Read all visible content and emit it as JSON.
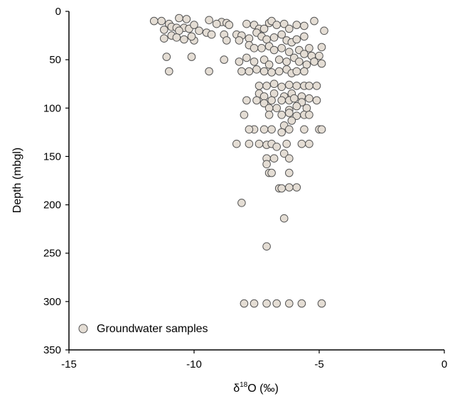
{
  "chart_data": {
    "type": "scatter",
    "title": "",
    "xlabel": "δ¹⁸O (‰)",
    "xlabel_parts": {
      "prefix": "δ",
      "sup": "18",
      "suffix": "O (‰)"
    },
    "ylabel": "Depth (mbgl)",
    "xlim": [
      -15,
      0
    ],
    "ylim": [
      0,
      350
    ],
    "y_inverted": true,
    "x_axis_position": "top",
    "x_ticks": [
      -15,
      -10,
      -5,
      0
    ],
    "y_ticks": [
      0,
      50,
      100,
      150,
      200,
      250,
      300,
      350
    ],
    "x_tick_labels": [
      "-15",
      "-10",
      "-5",
      "0"
    ],
    "y_tick_labels": [
      "0",
      "50",
      "100",
      "150",
      "200",
      "250",
      "300",
      "350"
    ],
    "grid": false,
    "legend_position": "bottom-left",
    "series": [
      {
        "name": "Groundwater samples",
        "marker": "circle",
        "fill": "#e4ddd4",
        "stroke": "#555555",
        "points": [
          [
            -11.6,
            10
          ],
          [
            -11.3,
            10
          ],
          [
            -10.6,
            7
          ],
          [
            -10.3,
            8
          ],
          [
            -9.4,
            9
          ],
          [
            -8.9,
            11
          ],
          [
            -8.7,
            12
          ],
          [
            -8.6,
            14
          ],
          [
            -9.1,
            13
          ],
          [
            -11.0,
            13
          ],
          [
            -10.9,
            16
          ],
          [
            -10.7,
            17
          ],
          [
            -10.4,
            17
          ],
          [
            -10.2,
            18
          ],
          [
            -10.0,
            14
          ],
          [
            -9.8,
            20
          ],
          [
            -10.6,
            20
          ],
          [
            -11.2,
            19
          ],
          [
            -11.2,
            28
          ],
          [
            -10.9,
            25
          ],
          [
            -10.7,
            27
          ],
          [
            -10.4,
            29
          ],
          [
            -10.0,
            30
          ],
          [
            -10.1,
            26
          ],
          [
            -9.5,
            22
          ],
          [
            -9.3,
            24
          ],
          [
            -8.8,
            24
          ],
          [
            -8.7,
            30
          ],
          [
            -11.1,
            47
          ],
          [
            -10.1,
            47
          ],
          [
            -11.0,
            62
          ],
          [
            -9.4,
            62
          ],
          [
            -8.8,
            50
          ],
          [
            -7.9,
            13
          ],
          [
            -7.6,
            14
          ],
          [
            -7.4,
            18
          ],
          [
            -7.2,
            18
          ],
          [
            -7.0,
            12
          ],
          [
            -6.9,
            10
          ],
          [
            -6.7,
            14
          ],
          [
            -6.4,
            13
          ],
          [
            -6.2,
            18
          ],
          [
            -5.9,
            14
          ],
          [
            -5.6,
            15
          ],
          [
            -5.2,
            10
          ],
          [
            -4.8,
            20
          ],
          [
            -8.3,
            24
          ],
          [
            -8.1,
            25
          ],
          [
            -7.8,
            28
          ],
          [
            -7.5,
            22
          ],
          [
            -7.3,
            26
          ],
          [
            -7.1,
            29
          ],
          [
            -6.8,
            27
          ],
          [
            -6.5,
            24
          ],
          [
            -6.3,
            30
          ],
          [
            -6.1,
            32
          ],
          [
            -5.9,
            29
          ],
          [
            -5.6,
            26
          ],
          [
            -8.2,
            30
          ],
          [
            -7.8,
            35
          ],
          [
            -7.6,
            38
          ],
          [
            -7.3,
            38
          ],
          [
            -7.0,
            36
          ],
          [
            -6.8,
            40
          ],
          [
            -6.5,
            38
          ],
          [
            -6.2,
            42
          ],
          [
            -5.8,
            40
          ],
          [
            -5.6,
            44
          ],
          [
            -5.3,
            46
          ],
          [
            -5.0,
            46
          ],
          [
            -4.9,
            37
          ],
          [
            -5.4,
            38
          ],
          [
            -8.2,
            52
          ],
          [
            -7.9,
            48
          ],
          [
            -7.6,
            52
          ],
          [
            -7.2,
            50
          ],
          [
            -7.0,
            55
          ],
          [
            -6.6,
            50
          ],
          [
            -6.3,
            52
          ],
          [
            -6.0,
            48
          ],
          [
            -5.8,
            52
          ],
          [
            -5.5,
            55
          ],
          [
            -5.2,
            52
          ],
          [
            -4.9,
            54
          ],
          [
            -8.1,
            62
          ],
          [
            -7.8,
            62
          ],
          [
            -7.5,
            60
          ],
          [
            -7.2,
            62
          ],
          [
            -6.9,
            63
          ],
          [
            -6.6,
            62
          ],
          [
            -6.3,
            60
          ],
          [
            -6.1,
            64
          ],
          [
            -5.9,
            62
          ],
          [
            -5.6,
            62
          ],
          [
            -7.4,
            77
          ],
          [
            -7.1,
            77
          ],
          [
            -6.8,
            75
          ],
          [
            -6.5,
            78
          ],
          [
            -6.2,
            76
          ],
          [
            -5.9,
            77
          ],
          [
            -5.6,
            77
          ],
          [
            -5.4,
            77
          ],
          [
            -5.1,
            77
          ],
          [
            -7.4,
            85
          ],
          [
            -7.2,
            88
          ],
          [
            -6.8,
            85
          ],
          [
            -6.4,
            88
          ],
          [
            -6.1,
            85
          ],
          [
            -5.7,
            88
          ],
          [
            -5.4,
            90
          ],
          [
            -7.9,
            92
          ],
          [
            -7.5,
            92
          ],
          [
            -7.2,
            95
          ],
          [
            -6.9,
            92
          ],
          [
            -6.5,
            92
          ],
          [
            -6.2,
            92
          ],
          [
            -6.0,
            90
          ],
          [
            -5.7,
            94
          ],
          [
            -5.1,
            92
          ],
          [
            -7.0,
            100
          ],
          [
            -6.7,
            100
          ],
          [
            -6.2,
            102
          ],
          [
            -5.9,
            98
          ],
          [
            -5.5,
            100
          ],
          [
            -8.0,
            107
          ],
          [
            -7.0,
            107
          ],
          [
            -6.5,
            107
          ],
          [
            -6.2,
            105
          ],
          [
            -5.9,
            108
          ],
          [
            -5.6,
            107
          ],
          [
            -5.4,
            107
          ],
          [
            -6.1,
            113
          ],
          [
            -6.4,
            118
          ],
          [
            -7.6,
            122
          ],
          [
            -7.8,
            122
          ],
          [
            -7.2,
            122
          ],
          [
            -6.9,
            122
          ],
          [
            -6.5,
            125
          ],
          [
            -6.2,
            122
          ],
          [
            -5.6,
            122
          ],
          [
            -5.0,
            122
          ],
          [
            -4.9,
            122
          ],
          [
            -8.3,
            137
          ],
          [
            -7.8,
            137
          ],
          [
            -7.4,
            137
          ],
          [
            -7.1,
            138
          ],
          [
            -6.9,
            137
          ],
          [
            -6.7,
            140
          ],
          [
            -6.3,
            137
          ],
          [
            -5.7,
            137
          ],
          [
            -5.4,
            137
          ],
          [
            -6.4,
            147
          ],
          [
            -7.1,
            152
          ],
          [
            -6.8,
            152
          ],
          [
            -6.2,
            152
          ],
          [
            -7.1,
            158
          ],
          [
            -7.0,
            167
          ],
          [
            -6.9,
            167
          ],
          [
            -6.2,
            167
          ],
          [
            -6.6,
            183
          ],
          [
            -6.5,
            183
          ],
          [
            -6.2,
            182
          ],
          [
            -5.9,
            182
          ],
          [
            -8.1,
            198
          ],
          [
            -6.4,
            214
          ],
          [
            -7.1,
            243
          ],
          [
            -8.0,
            302
          ],
          [
            -7.6,
            302
          ],
          [
            -7.1,
            302
          ],
          [
            -6.7,
            302
          ],
          [
            -6.2,
            302
          ],
          [
            -5.7,
            302
          ],
          [
            -4.9,
            302
          ]
        ]
      }
    ]
  }
}
